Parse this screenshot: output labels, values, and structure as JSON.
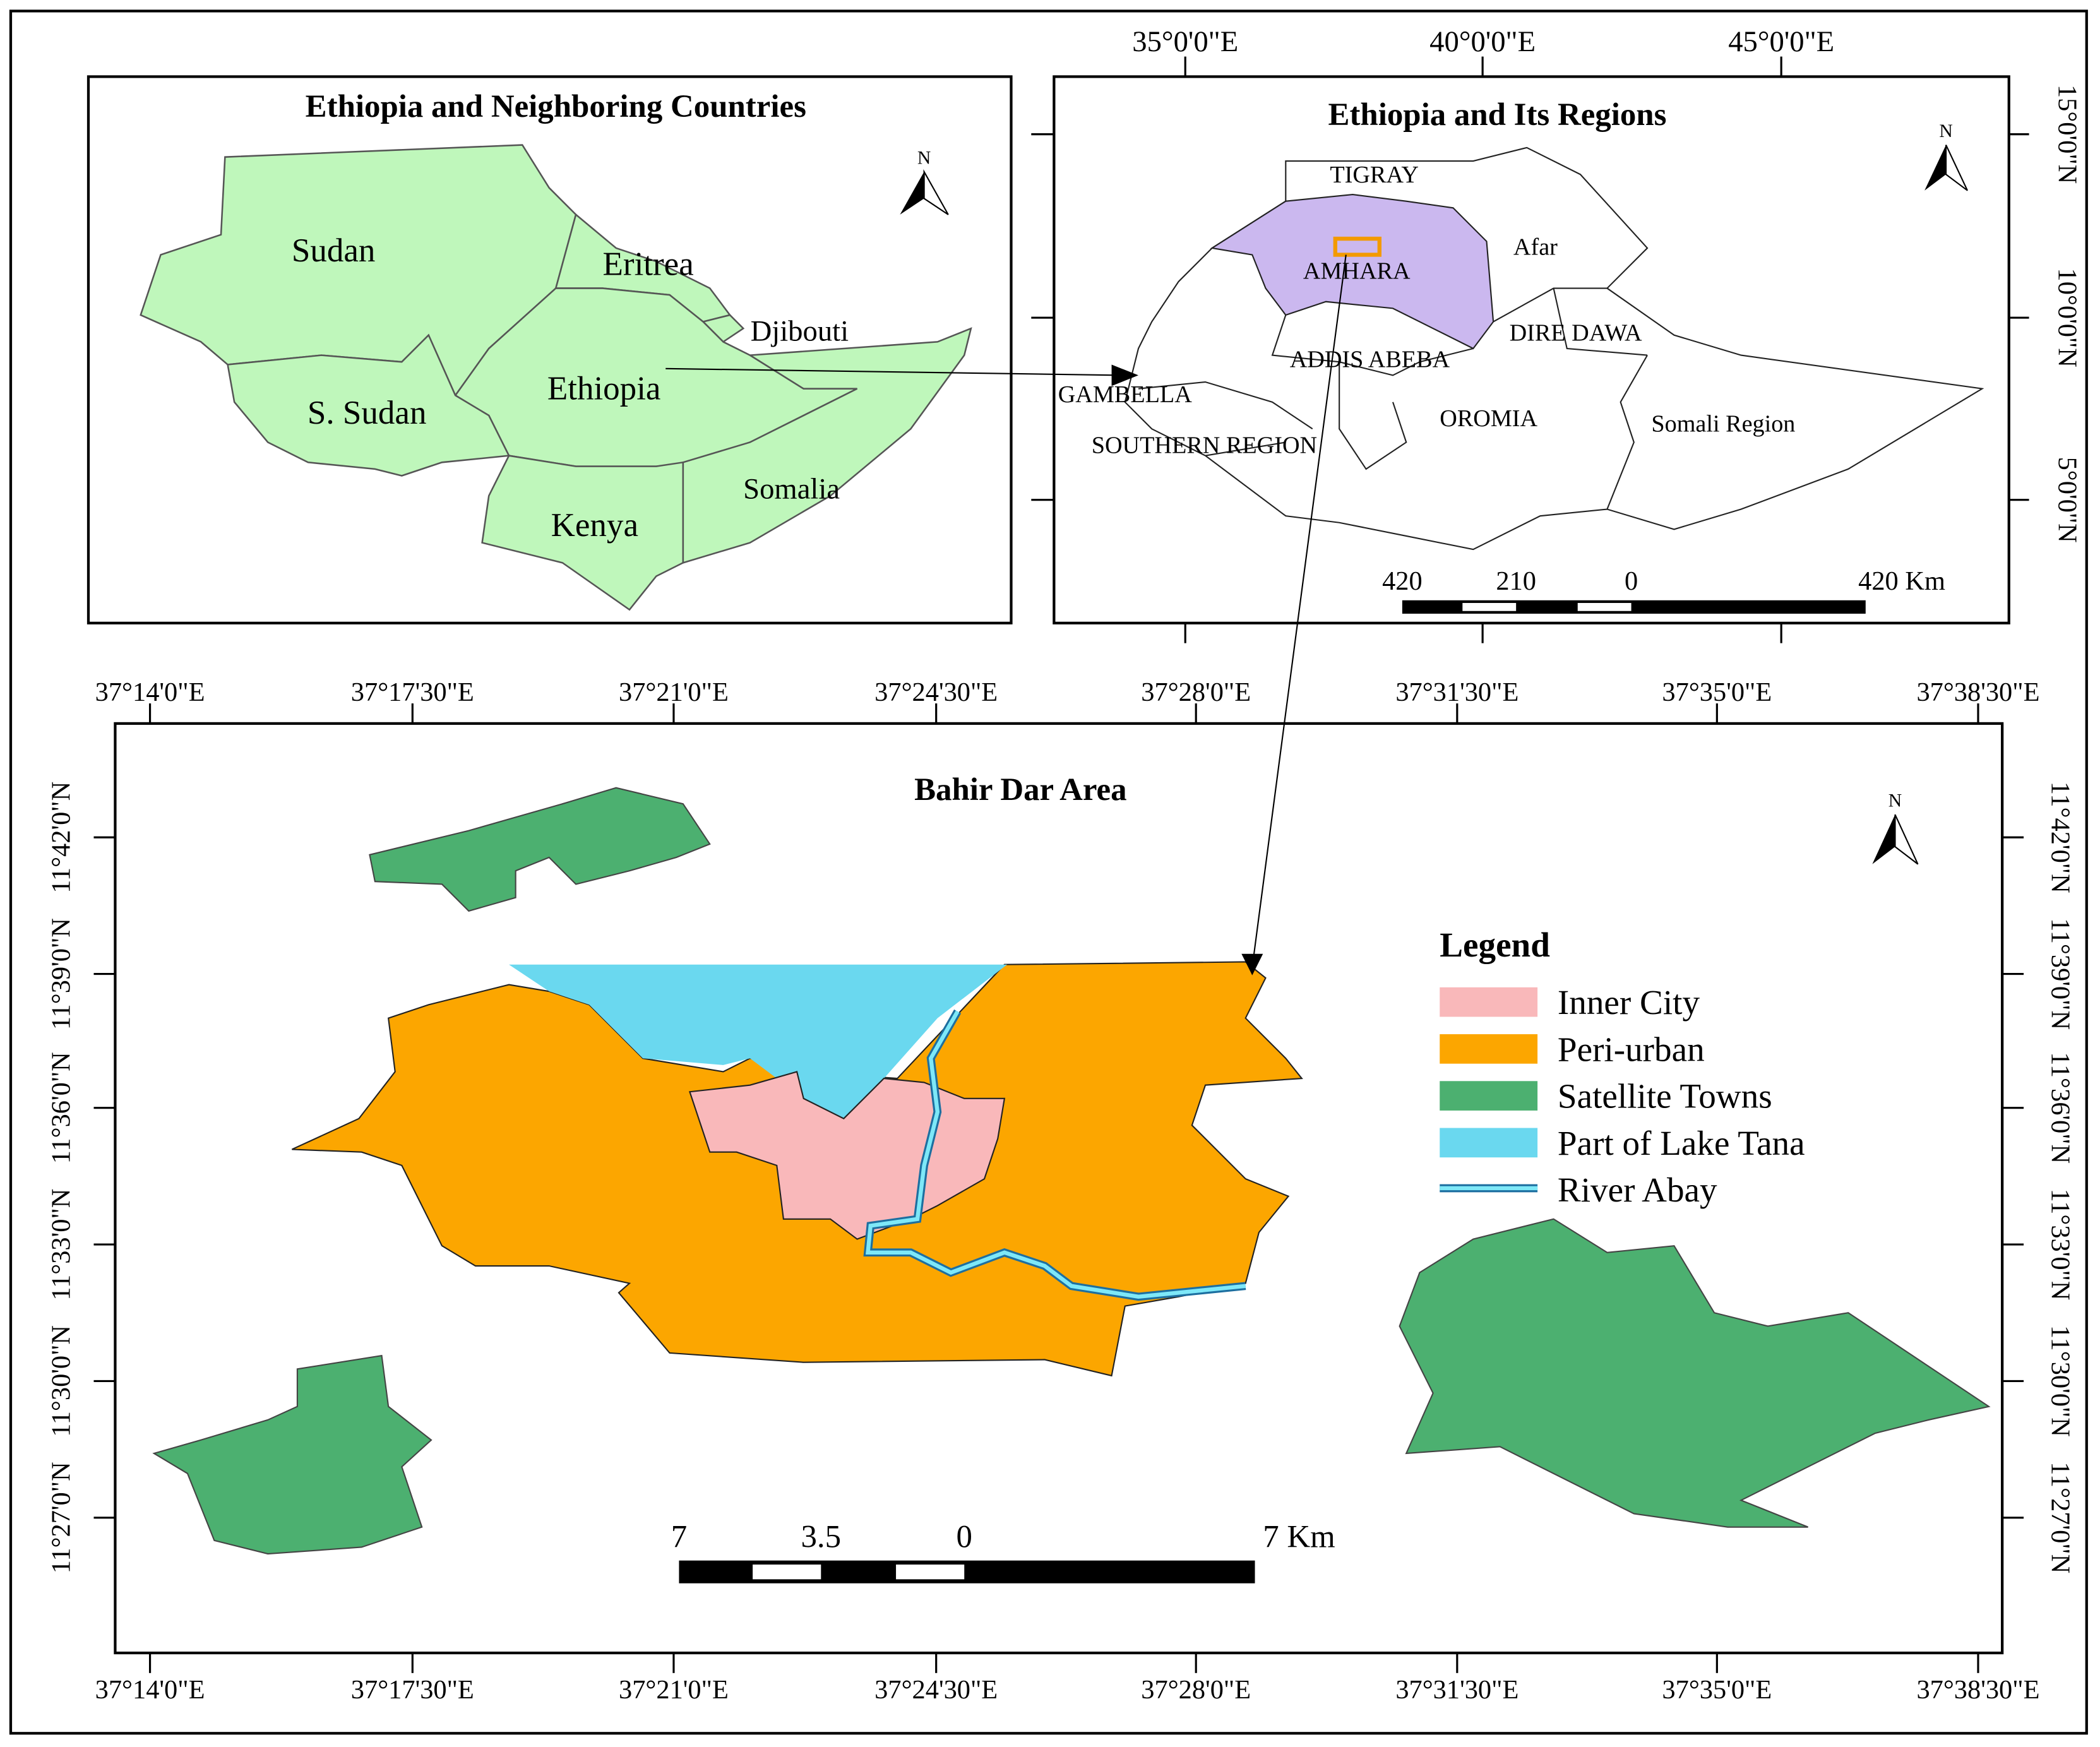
{
  "inset_neighbors": {
    "title": "Ethiopia and Neighboring Countries",
    "north": "N",
    "countries": [
      "Sudan",
      "Eritrea",
      "Djibouti",
      "Ethiopia",
      "S. Sudan",
      "Somalia",
      "Kenya"
    ]
  },
  "inset_regions": {
    "title": "Ethiopia and Its Regions",
    "north": "N",
    "regions": [
      "TIGRAY",
      "Afar",
      "AMHARA",
      "DIRE DAWA",
      "ADDIS ABEBA",
      "GAMBELLA",
      "OROMIA",
      "Somali Region",
      "SOUTHERN REGION"
    ],
    "longitude_ticks": [
      "35°0'0\"E",
      "40°0'0\"E",
      "45°0'0\"E"
    ],
    "latitude_ticks": [
      "15°0'0\"N",
      "10°0'0\"N",
      "5°0'0\"N"
    ],
    "scale": [
      "420",
      "210",
      "0",
      "420 Km"
    ]
  },
  "main_map": {
    "title": "Bahir Dar Area",
    "north": "N",
    "longitude_ticks": [
      "37°14'0\"E",
      "37°17'30\"E",
      "37°21'0\"E",
      "37°24'30\"E",
      "37°28'0\"E",
      "37°31'30\"E",
      "37°35'0\"E",
      "37°38'30\"E"
    ],
    "latitude_ticks": [
      "11°42'0\"N",
      "11°39'0\"N",
      "11°36'0\"N",
      "11°33'0\"N",
      "11°30'0\"N",
      "11°27'0\"N"
    ],
    "scale": [
      "7",
      "3.5",
      "0",
      "7 Km"
    ],
    "legend": {
      "title": "Legend",
      "items": [
        "Inner City",
        "Peri-urban",
        "Satellite Towns",
        "Part of Lake Tana",
        "River Abay"
      ]
    }
  }
}
